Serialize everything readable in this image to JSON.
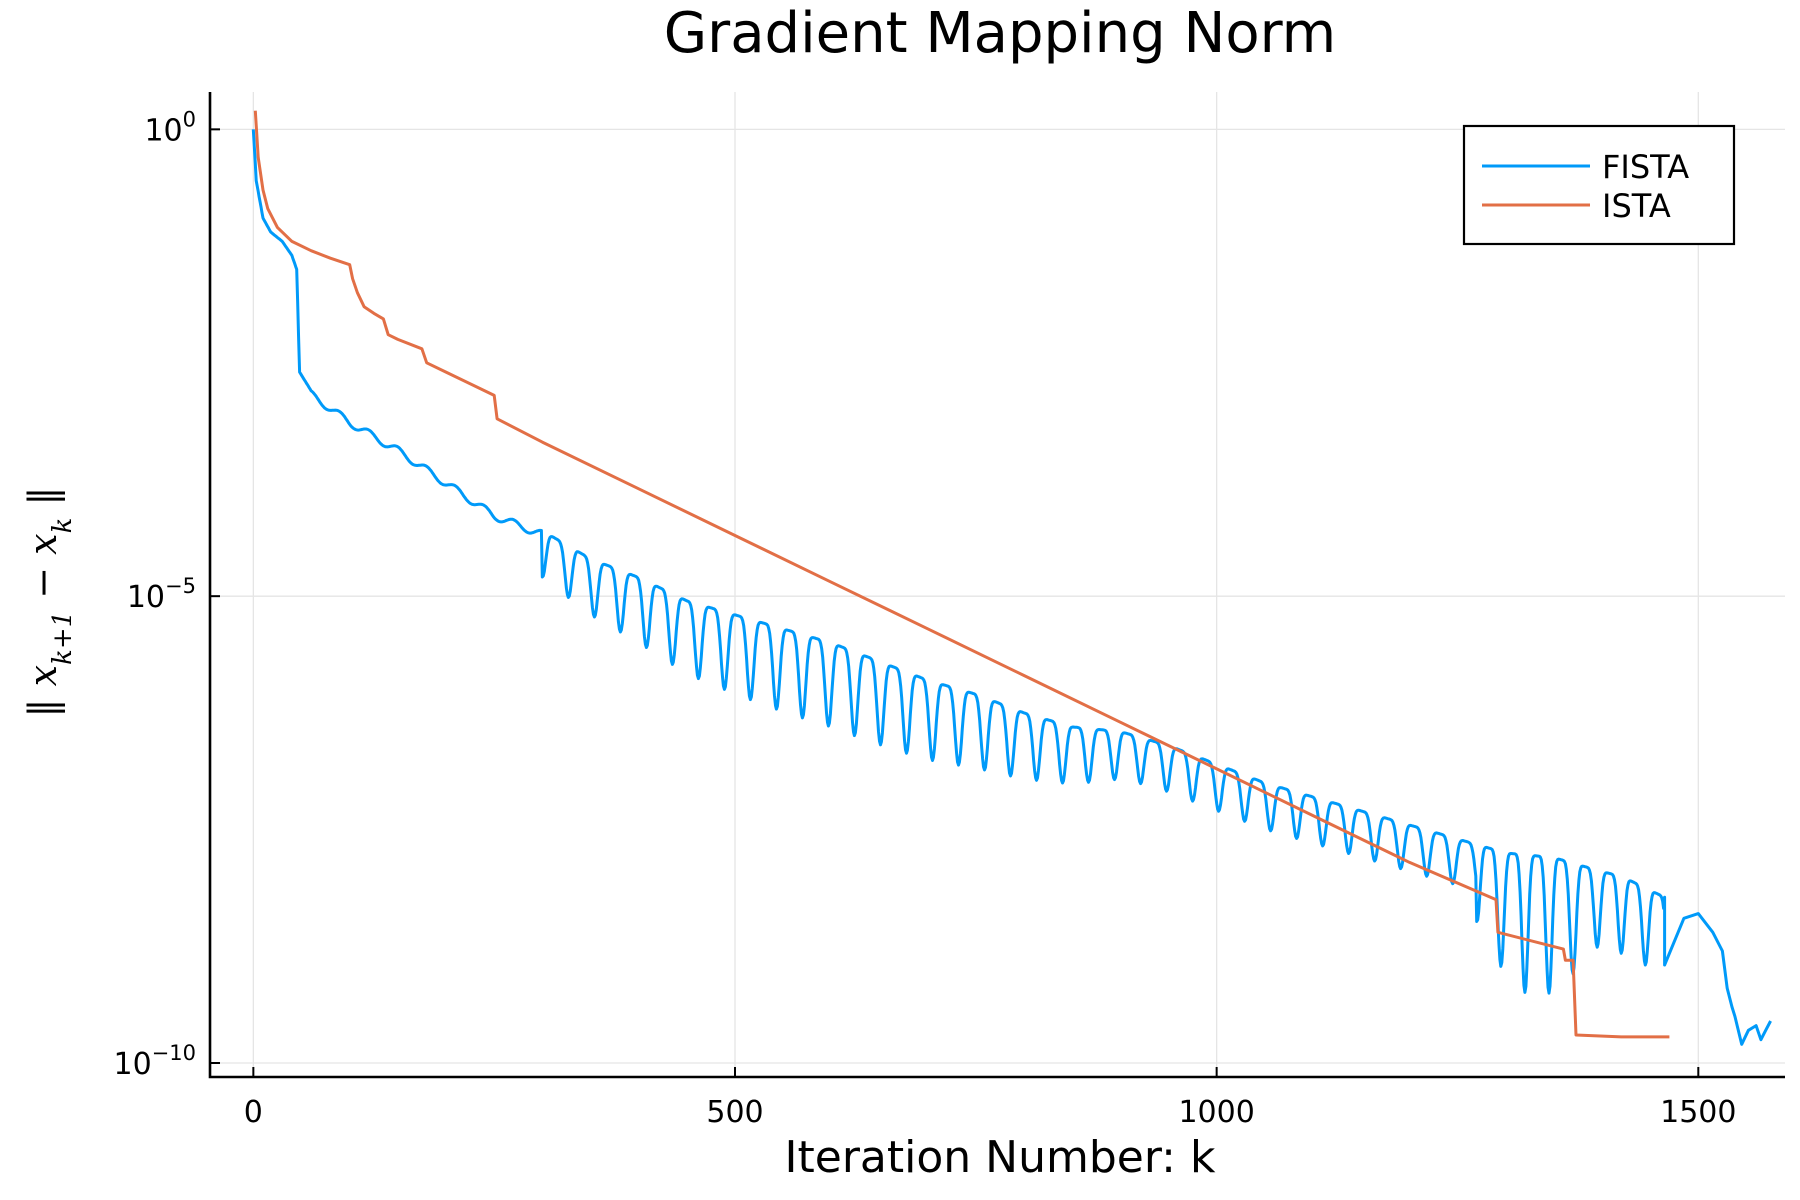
{
  "chart_data": {
    "type": "line",
    "title": "Gradient Mapping Norm",
    "xlabel": "Iteration Number: k",
    "ylabel": "‖ x_{k+1} − x_k ‖",
    "y_scale": "log10",
    "xlim": [
      -45,
      1590
    ],
    "ylim_log10": [
      -10.15,
      0.4
    ],
    "x_ticks": [
      0,
      500,
      1000,
      1500
    ],
    "x_tick_labels": [
      "0",
      "500",
      "1000",
      "1500"
    ],
    "y_ticks_log10": [
      0,
      -5,
      -10
    ],
    "y_tick_labels": [
      {
        "base": "10",
        "exp": "0"
      },
      {
        "base": "10",
        "exp": "−5"
      },
      {
        "base": "10",
        "exp": "−10"
      }
    ],
    "grid": true,
    "legend_position": "top-right",
    "series": [
      {
        "name": "FISTA",
        "color": "#009af9",
        "log10_envelope": [
          [
            0,
            0.0
          ],
          [
            3,
            -0.55
          ],
          [
            10,
            -0.95
          ],
          [
            18,
            -1.1
          ],
          [
            30,
            -1.2
          ],
          [
            40,
            -1.35
          ],
          [
            45,
            -1.5
          ],
          [
            48,
            -2.6
          ],
          [
            60,
            -2.8
          ],
          [
            100,
            -3.1
          ],
          [
            150,
            -3.4
          ],
          [
            200,
            -3.75
          ],
          [
            250,
            -4.1
          ],
          [
            300,
            -4.3
          ],
          [
            350,
            -4.6
          ],
          [
            400,
            -4.8
          ],
          [
            450,
            -5.05
          ],
          [
            500,
            -5.2
          ],
          [
            550,
            -5.35
          ],
          [
            600,
            -5.5
          ],
          [
            650,
            -5.7
          ],
          [
            700,
            -5.9
          ],
          [
            750,
            -6.05
          ],
          [
            800,
            -6.25
          ],
          [
            850,
            -6.4
          ],
          [
            900,
            -6.45
          ],
          [
            950,
            -6.6
          ],
          [
            1000,
            -6.8
          ],
          [
            1050,
            -7.0
          ],
          [
            1100,
            -7.15
          ],
          [
            1150,
            -7.3
          ],
          [
            1200,
            -7.45
          ],
          [
            1250,
            -7.6
          ],
          [
            1300,
            -7.75
          ],
          [
            1350,
            -7.8
          ],
          [
            1400,
            -7.95
          ],
          [
            1420,
            -8.0
          ],
          [
            1480,
            -8.3
          ],
          [
            1520,
            -8.5
          ]
        ],
        "dips": [
          {
            "start": 300,
            "end": 1270,
            "period": 27,
            "depth_log10": 0.9
          },
          {
            "start": 1270,
            "end": 1465,
            "period": 25,
            "depth_log10": 1.5
          }
        ],
        "tail": [
          [
            1465,
            -8.95
          ],
          [
            1485,
            -8.45
          ],
          [
            1500,
            -8.4
          ],
          [
            1515,
            -8.6
          ],
          [
            1525,
            -8.8
          ],
          [
            1530,
            -9.2
          ],
          [
            1535,
            -9.4
          ],
          [
            1538,
            -9.5
          ],
          [
            1545,
            -9.8
          ],
          [
            1552,
            -9.65
          ],
          [
            1560,
            -9.6
          ],
          [
            1565,
            -9.75
          ],
          [
            1570,
            -9.65
          ],
          [
            1575,
            -9.55
          ]
        ]
      },
      {
        "name": "ISTA",
        "color": "#e26f46",
        "log10_path": [
          [
            2,
            0.2
          ],
          [
            5,
            -0.3
          ],
          [
            10,
            -0.65
          ],
          [
            15,
            -0.85
          ],
          [
            25,
            -1.05
          ],
          [
            40,
            -1.2
          ],
          [
            60,
            -1.3
          ],
          [
            80,
            -1.38
          ],
          [
            100,
            -1.45
          ],
          [
            103,
            -1.6
          ],
          [
            108,
            -1.75
          ],
          [
            115,
            -1.9
          ],
          [
            125,
            -1.97
          ],
          [
            135,
            -2.03
          ],
          [
            140,
            -2.2
          ],
          [
            150,
            -2.25
          ],
          [
            175,
            -2.35
          ],
          [
            180,
            -2.5
          ],
          [
            200,
            -2.6
          ],
          [
            250,
            -2.85
          ],
          [
            253,
            -3.1
          ],
          [
            300,
            -3.35
          ],
          [
            400,
            -3.85
          ],
          [
            500,
            -4.35
          ],
          [
            600,
            -4.85
          ],
          [
            700,
            -5.35
          ],
          [
            800,
            -5.85
          ],
          [
            900,
            -6.35
          ],
          [
            1000,
            -6.85
          ],
          [
            1100,
            -7.35
          ],
          [
            1200,
            -7.85
          ],
          [
            1290,
            -8.25
          ],
          [
            1292,
            -8.6
          ],
          [
            1360,
            -8.78
          ],
          [
            1362,
            -8.9
          ],
          [
            1370,
            -8.9
          ],
          [
            1373,
            -9.7
          ],
          [
            1420,
            -9.72
          ],
          [
            1470,
            -9.72
          ],
          [
            1470,
            -9.75
          ],
          [
            1300,
            -9.75
          ],
          [
            1310,
            -9.7
          ]
        ]
      }
    ]
  }
}
